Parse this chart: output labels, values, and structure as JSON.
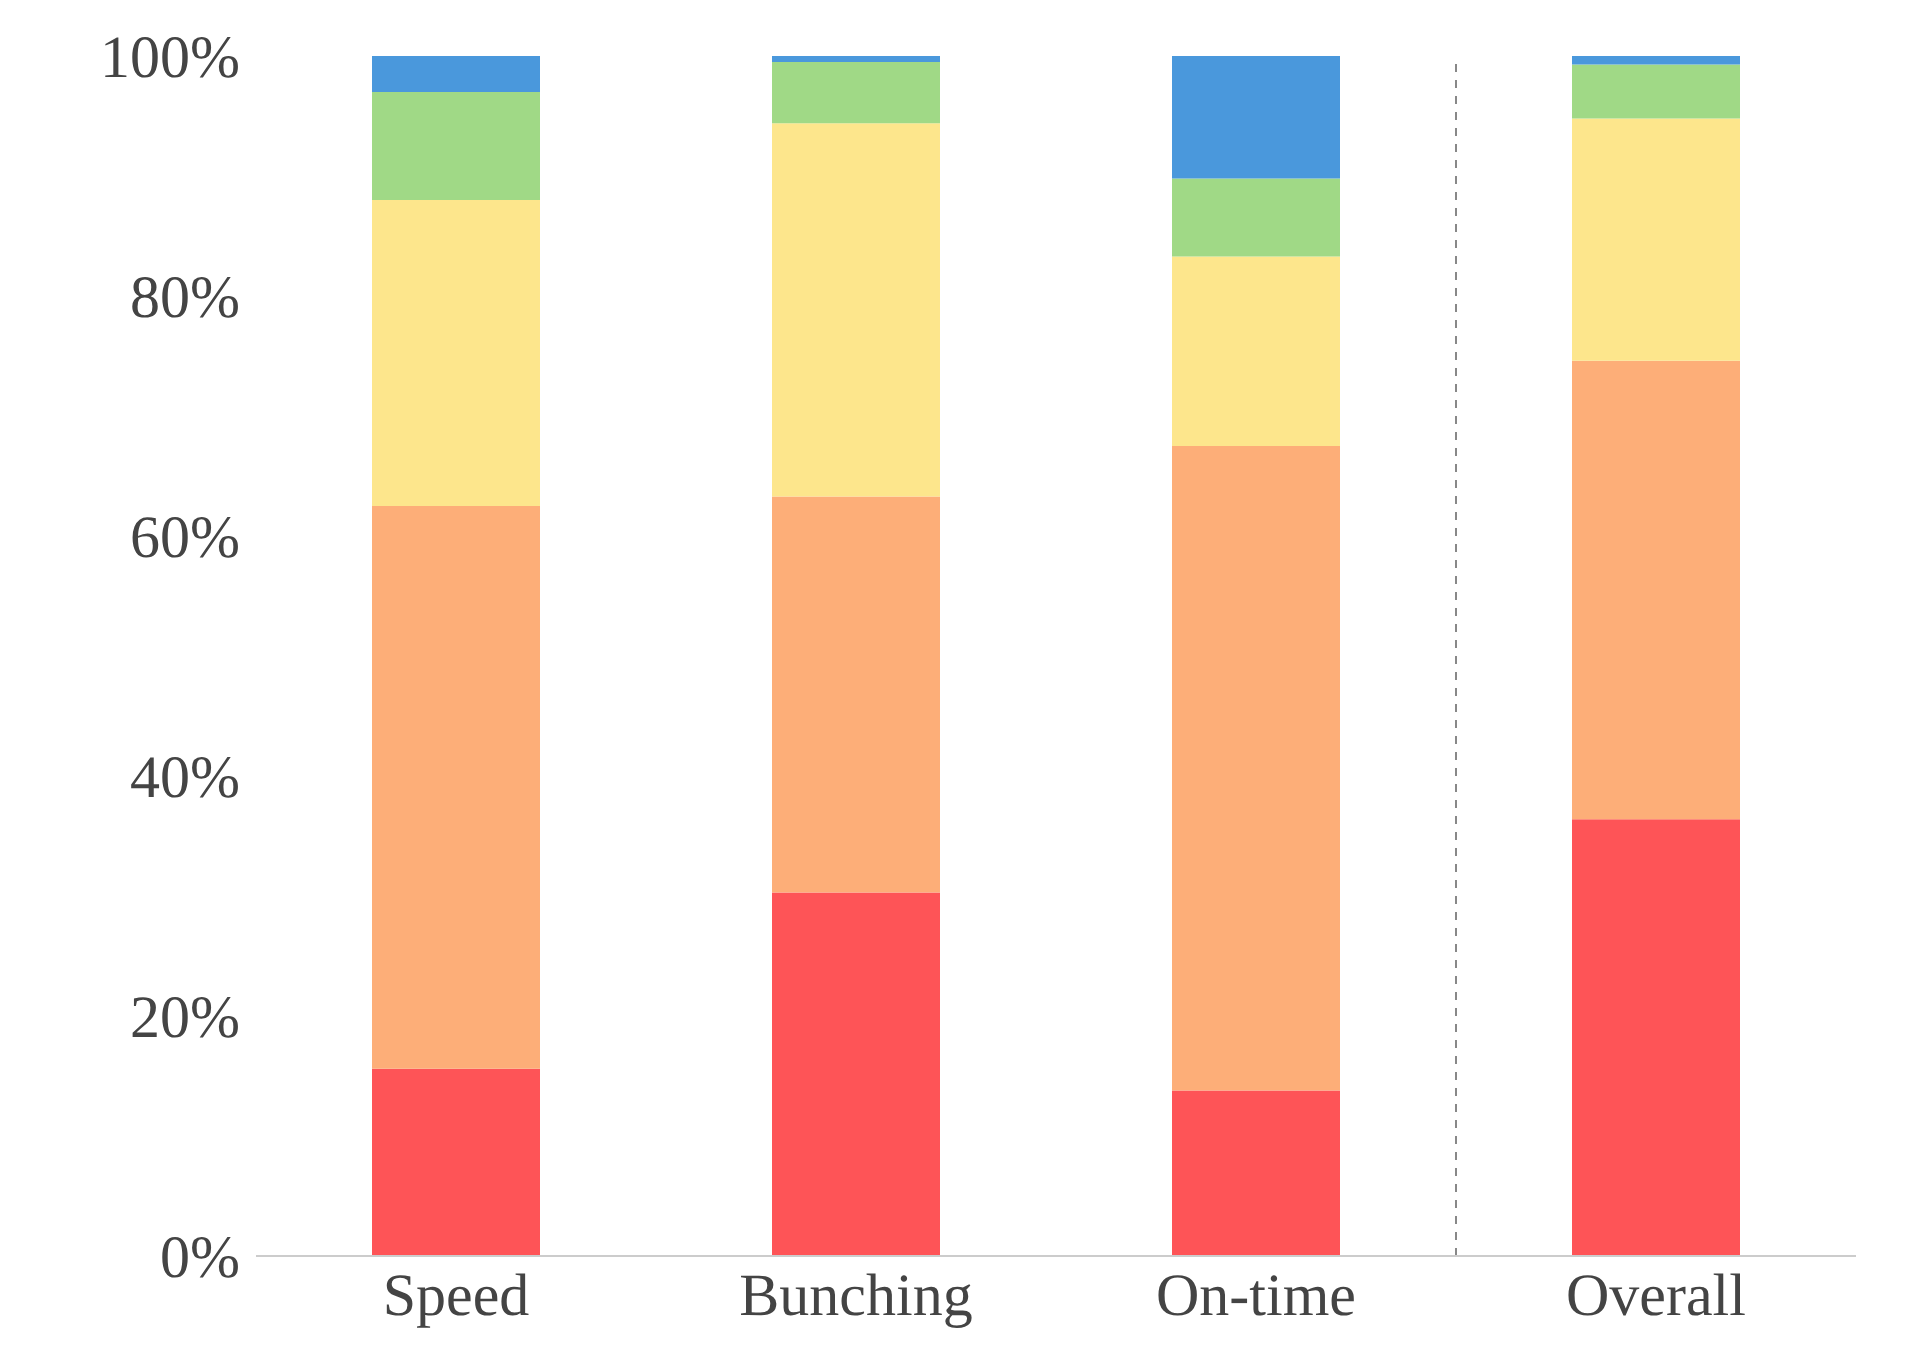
{
  "chart_data": {
    "type": "bar",
    "stacked": true,
    "categories": [
      "Speed",
      "Bunching",
      "On-time",
      "Overall"
    ],
    "series": [
      {
        "color": "#fe5457",
        "values": [
          15.6,
          30.3,
          13.8,
          36.4
        ]
      },
      {
        "color": "#fdae78",
        "values": [
          46.9,
          33.0,
          53.7,
          38.2
        ]
      },
      {
        "color": "#fde68c",
        "values": [
          25.5,
          31.1,
          15.8,
          20.2
        ]
      },
      {
        "color": "#a0d986",
        "values": [
          9.0,
          5.1,
          6.5,
          4.5
        ]
      },
      {
        "color": "#4a98dc",
        "values": [
          3.0,
          0.5,
          10.2,
          0.7
        ]
      }
    ],
    "ylim": [
      0,
      100
    ],
    "yticks": [
      {
        "value": 0,
        "label": "0%"
      },
      {
        "value": 20,
        "label": "20%"
      },
      {
        "value": 40,
        "label": "40%"
      },
      {
        "value": 60,
        "label": "60%"
      },
      {
        "value": 80,
        "label": "80%"
      },
      {
        "value": 100,
        "label": "100%"
      }
    ],
    "grid": false,
    "legend": false
  }
}
